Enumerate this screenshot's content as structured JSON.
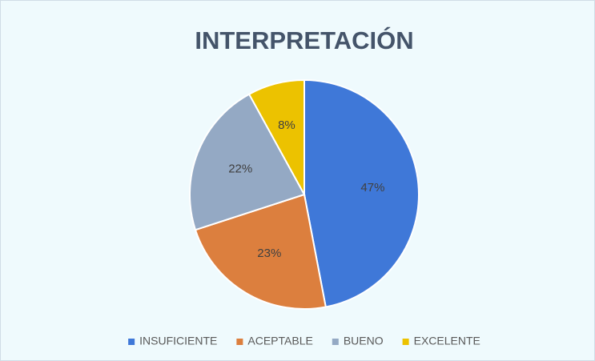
{
  "chart_data": {
    "type": "pie",
    "title": "INTERPRETACIÓN",
    "categories": [
      "INSUFICIENTE",
      "ACEPTABLE",
      "BUENO",
      "EXCELENTE"
    ],
    "values": [
      47,
      23,
      22,
      8
    ],
    "value_labels": [
      "47%",
      "23%",
      "22%",
      "8%"
    ],
    "colors": [
      "#3f78d8",
      "#dc7f3e",
      "#94a9c4",
      "#ecc200"
    ],
    "legend": "bottom"
  }
}
